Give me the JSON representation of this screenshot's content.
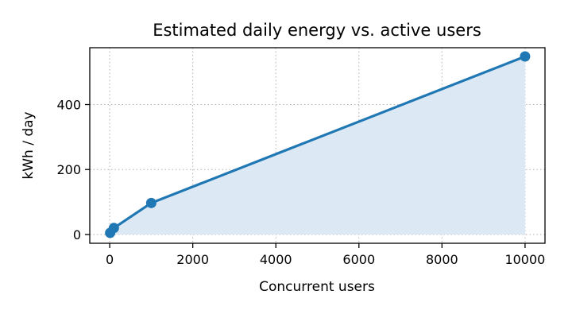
{
  "chart_data": {
    "type": "line",
    "title": "Estimated daily energy vs. active users",
    "xlabel": "Concurrent users",
    "ylabel": "kWh / day",
    "x": [
      10,
      100,
      1000,
      10000
    ],
    "series": [
      {
        "values": [
          5,
          20,
          97,
          548
        ]
      }
    ],
    "xlim": [
      -480,
      10480
    ],
    "ylim": [
      -27,
      575
    ],
    "xticks": [
      0,
      2000,
      4000,
      6000,
      8000,
      10000
    ],
    "yticks": [
      0,
      200,
      400
    ],
    "grid": true,
    "area_fill": true,
    "colors": {
      "line": "#1f77b4",
      "area": "#dce9f4"
    }
  }
}
